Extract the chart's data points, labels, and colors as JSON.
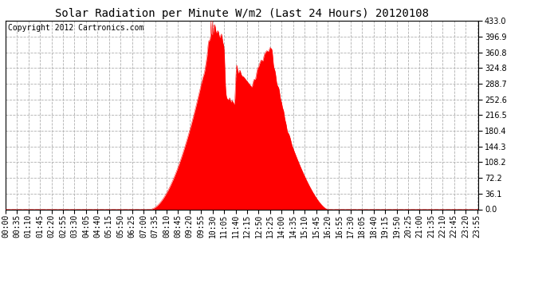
{
  "title": "Solar Radiation per Minute W/m2 (Last 24 Hours) 20120108",
  "copyright": "Copyright 2012 Cartronics.com",
  "y_ticks": [
    0.0,
    36.1,
    72.2,
    108.2,
    144.3,
    180.4,
    216.5,
    252.6,
    288.7,
    324.8,
    360.8,
    396.9,
    433.0
  ],
  "y_max": 433.0,
  "y_min": 0.0,
  "fill_color": "#ff0000",
  "line_color": "#ff0000",
  "dashed_line_color": "#ff0000",
  "background_color": "#ffffff",
  "grid_color": "#b0b0b0",
  "title_fontsize": 10,
  "copyright_fontsize": 7,
  "tick_fontsize": 7
}
